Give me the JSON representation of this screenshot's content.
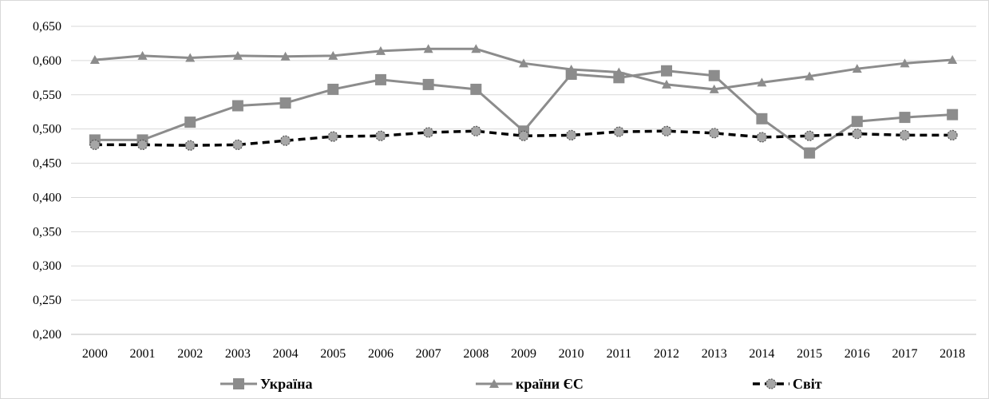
{
  "chart_data": {
    "type": "line",
    "title": "",
    "xlabel": "",
    "ylabel": "",
    "x": [
      2000,
      2001,
      2002,
      2003,
      2004,
      2005,
      2006,
      2007,
      2008,
      2009,
      2010,
      2011,
      2012,
      2013,
      2014,
      2015,
      2016,
      2017,
      2018
    ],
    "ylim": [
      0.2,
      0.65
    ],
    "yticks": [
      "0,200",
      "0,250",
      "0,300",
      "0,350",
      "0,400",
      "0,450",
      "0,500",
      "0,550",
      "0,600",
      "0,650"
    ],
    "grid": true,
    "legend_position": "bottom",
    "series": [
      {
        "name": "Україна",
        "marker": "square",
        "color": "#8c8c8c",
        "dashed": false,
        "values": [
          0.484,
          0.484,
          0.51,
          0.534,
          0.538,
          0.558,
          0.572,
          0.565,
          0.558,
          0.497,
          0.58,
          0.575,
          0.585,
          0.578,
          0.515,
          0.465,
          0.511,
          0.517,
          0.521
        ]
      },
      {
        "name": "країни ЄС",
        "marker": "triangle",
        "color": "#8c8c8c",
        "dashed": false,
        "values": [
          0.601,
          0.607,
          0.604,
          0.607,
          0.606,
          0.607,
          0.614,
          0.617,
          0.617,
          0.596,
          0.587,
          0.583,
          0.565,
          0.558,
          0.568,
          0.577,
          0.588,
          0.596,
          0.601
        ]
      },
      {
        "name": "Світ",
        "marker": "circle",
        "color": "#000000",
        "marker_fill": "#a6a6a6",
        "dashed": true,
        "values": [
          0.477,
          0.477,
          0.476,
          0.477,
          0.483,
          0.489,
          0.49,
          0.495,
          0.497,
          0.49,
          0.491,
          0.496,
          0.497,
          0.494,
          0.488,
          0.49,
          0.493,
          0.491,
          0.491
        ]
      }
    ]
  }
}
